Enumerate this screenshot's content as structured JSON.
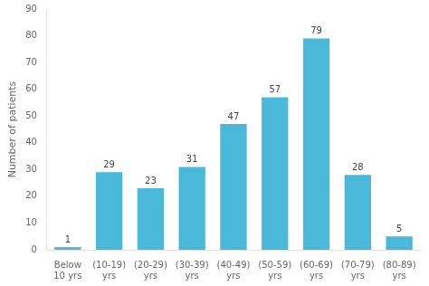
{
  "chart_data": {
    "type": "bar",
    "categories": [
      "Below\n10 yrs",
      "(10-19)\nyrs",
      "(20-29)\nyrs",
      "(30-39)\nyrs",
      "(40-49)\nyrs",
      "(50-59)\nyrs",
      "(60-69)\nyrs",
      "(70-79)\nyrs",
      "(80-89)\nyrs"
    ],
    "values": [
      1,
      29,
      23,
      31,
      47,
      57,
      79,
      28,
      5
    ],
    "color": "#4ab8d8",
    "ylabel": "Number of patients",
    "ylim": [
      0,
      90
    ],
    "yticks": [
      0,
      10,
      20,
      30,
      40,
      50,
      60,
      70,
      80,
      90
    ],
    "grid": false,
    "data_labels": true
  }
}
